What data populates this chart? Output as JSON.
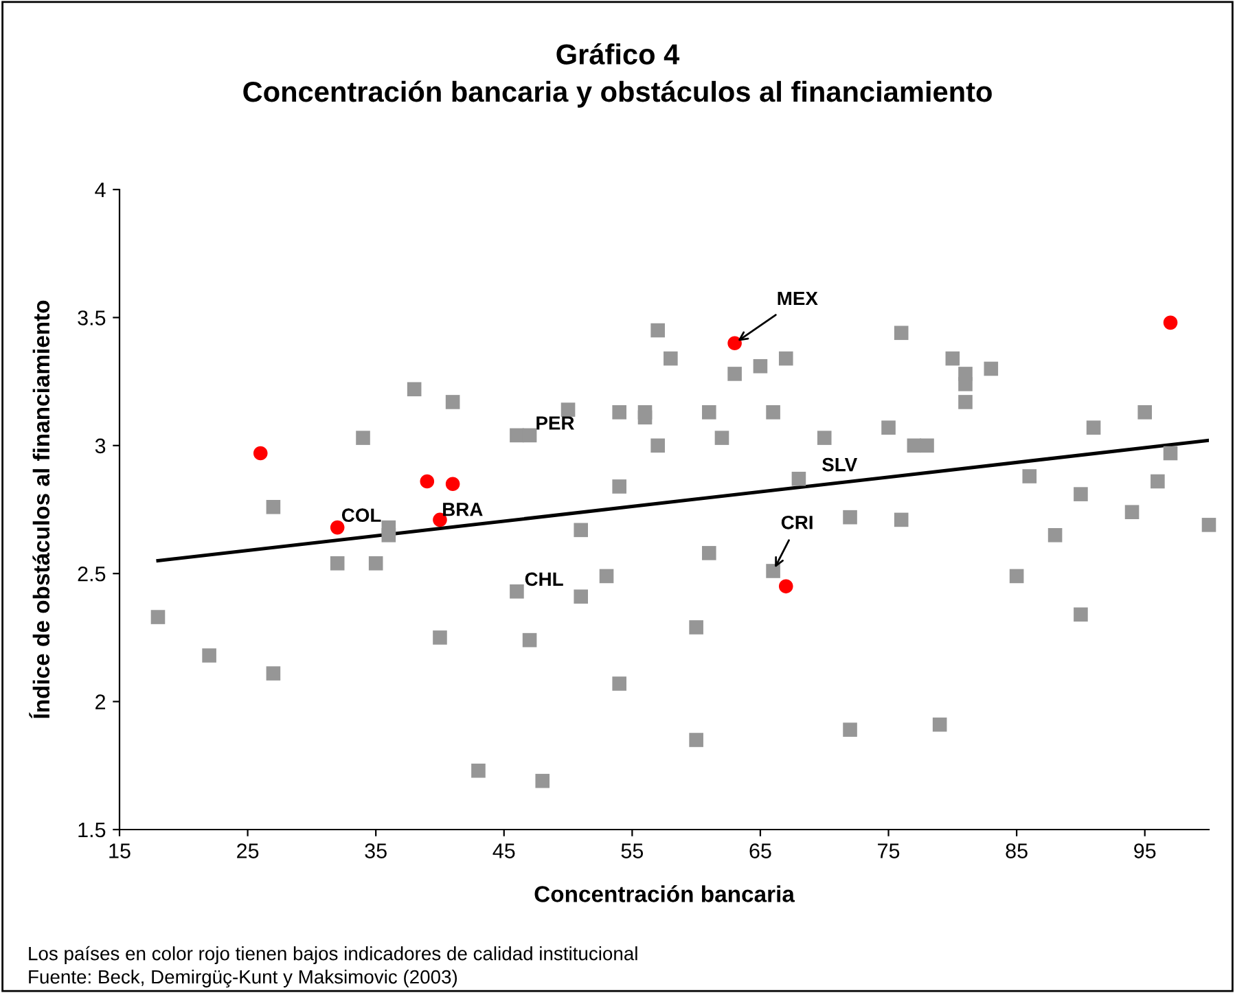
{
  "chart_data": {
    "type": "scatter",
    "title": "Gráfico 4\nConcentración bancaria y obstáculos al financiamiento",
    "xlabel": "Concentración bancaria",
    "ylabel": "Índice de obstáculos al financiamiento",
    "xlim": [
      15,
      100
    ],
    "xticks": [
      15,
      25,
      35,
      45,
      55,
      65,
      75,
      85,
      95
    ],
    "ylim": [
      1.5,
      4
    ],
    "yticks": [
      1.5,
      2,
      2.5,
      3,
      3.5,
      4
    ],
    "grid": false,
    "legend": false,
    "series": [
      {
        "marker": "square",
        "color": "#969696",
        "x": [
          18,
          22,
          27,
          27,
          32,
          34,
          35,
          36,
          36,
          38,
          40,
          41,
          43,
          46,
          46,
          47,
          47,
          48,
          50,
          51,
          51,
          53,
          54,
          54,
          54,
          56,
          56,
          57,
          57,
          58,
          60,
          60,
          61,
          61,
          62,
          63,
          65,
          66,
          66,
          67,
          68,
          70,
          72,
          72,
          75,
          76,
          76,
          77,
          78,
          79,
          80,
          81,
          81,
          81,
          83,
          85,
          86,
          88,
          90,
          90,
          91,
          94,
          95,
          96,
          97,
          100
        ],
        "values": [
          2.33,
          2.18,
          2.76,
          2.11,
          2.54,
          3.03,
          2.54,
          2.68,
          2.65,
          3.22,
          2.25,
          3.17,
          1.73,
          3.04,
          2.43,
          3.04,
          2.24,
          1.69,
          3.14,
          2.67,
          2.41,
          2.49,
          3.13,
          2.84,
          2.07,
          3.13,
          3.11,
          3.45,
          3.0,
          3.34,
          2.29,
          1.85,
          3.13,
          2.58,
          3.03,
          3.28,
          3.31,
          3.13,
          2.51,
          3.34,
          2.87,
          3.03,
          2.72,
          1.89,
          3.07,
          3.44,
          2.71,
          3.0,
          3.0,
          1.91,
          3.34,
          3.28,
          3.24,
          3.17,
          3.3,
          2.49,
          2.88,
          2.65,
          2.81,
          2.34,
          3.07,
          2.74,
          3.13,
          2.86,
          2.97,
          2.69
        ]
      },
      {
        "marker": "circle",
        "color": "#ff0000",
        "x": [
          26,
          32,
          39,
          41,
          40,
          63,
          67,
          97
        ],
        "values": [
          2.97,
          2.68,
          2.86,
          2.85,
          2.71,
          3.4,
          2.45,
          3.48
        ]
      },
      {
        "type": "line",
        "marker": "none",
        "color": "#000000",
        "x": [
          18,
          100
        ],
        "values": [
          2.55,
          3.02
        ]
      }
    ],
    "annotations": [
      {
        "text": "MEX",
        "x": 63,
        "y": 3.4
      },
      {
        "text": "PER",
        "x": 47,
        "y": 3.04
      },
      {
        "text": "SLV",
        "x": 68,
        "y": 2.87
      },
      {
        "text": "COL",
        "x": 32,
        "y": 2.68
      },
      {
        "text": "BRA",
        "x": 40,
        "y": 2.71
      },
      {
        "text": "CRI",
        "x": 66,
        "y": 2.51
      },
      {
        "text": "CHL",
        "x": 46,
        "y": 2.43
      },
      "Los países en color rojo tienen bajos indicadores de calidad institucional\nFuente: Beck, Demirgüç-Kunt y Maksimovic (2003)"
    ]
  }
}
